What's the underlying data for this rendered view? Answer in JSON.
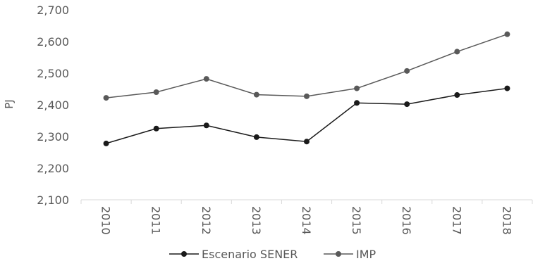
{
  "chart_data": {
    "type": "line",
    "title": "",
    "xlabel": "",
    "ylabel": "PJ",
    "categories": [
      "2010",
      "2011",
      "2012",
      "2013",
      "2014",
      "2015",
      "2016",
      "2017",
      "2018"
    ],
    "y_ticks": [
      "2,100",
      "2,200",
      "2,300",
      "2,400",
      "2,500",
      "2,600",
      "2,700"
    ],
    "ylim": [
      2100,
      2700
    ],
    "grid": false,
    "legend_position": "bottom",
    "series": [
      {
        "name": "Escenario SENER",
        "color": "#1a1a1a",
        "values": [
          2278,
          2325,
          2335,
          2298,
          2284,
          2406,
          2402,
          2431,
          2452
        ]
      },
      {
        "name": "IMP",
        "color": "#595959",
        "values": [
          2422,
          2440,
          2482,
          2432,
          2427,
          2452,
          2507,
          2568,
          2623
        ]
      }
    ]
  }
}
